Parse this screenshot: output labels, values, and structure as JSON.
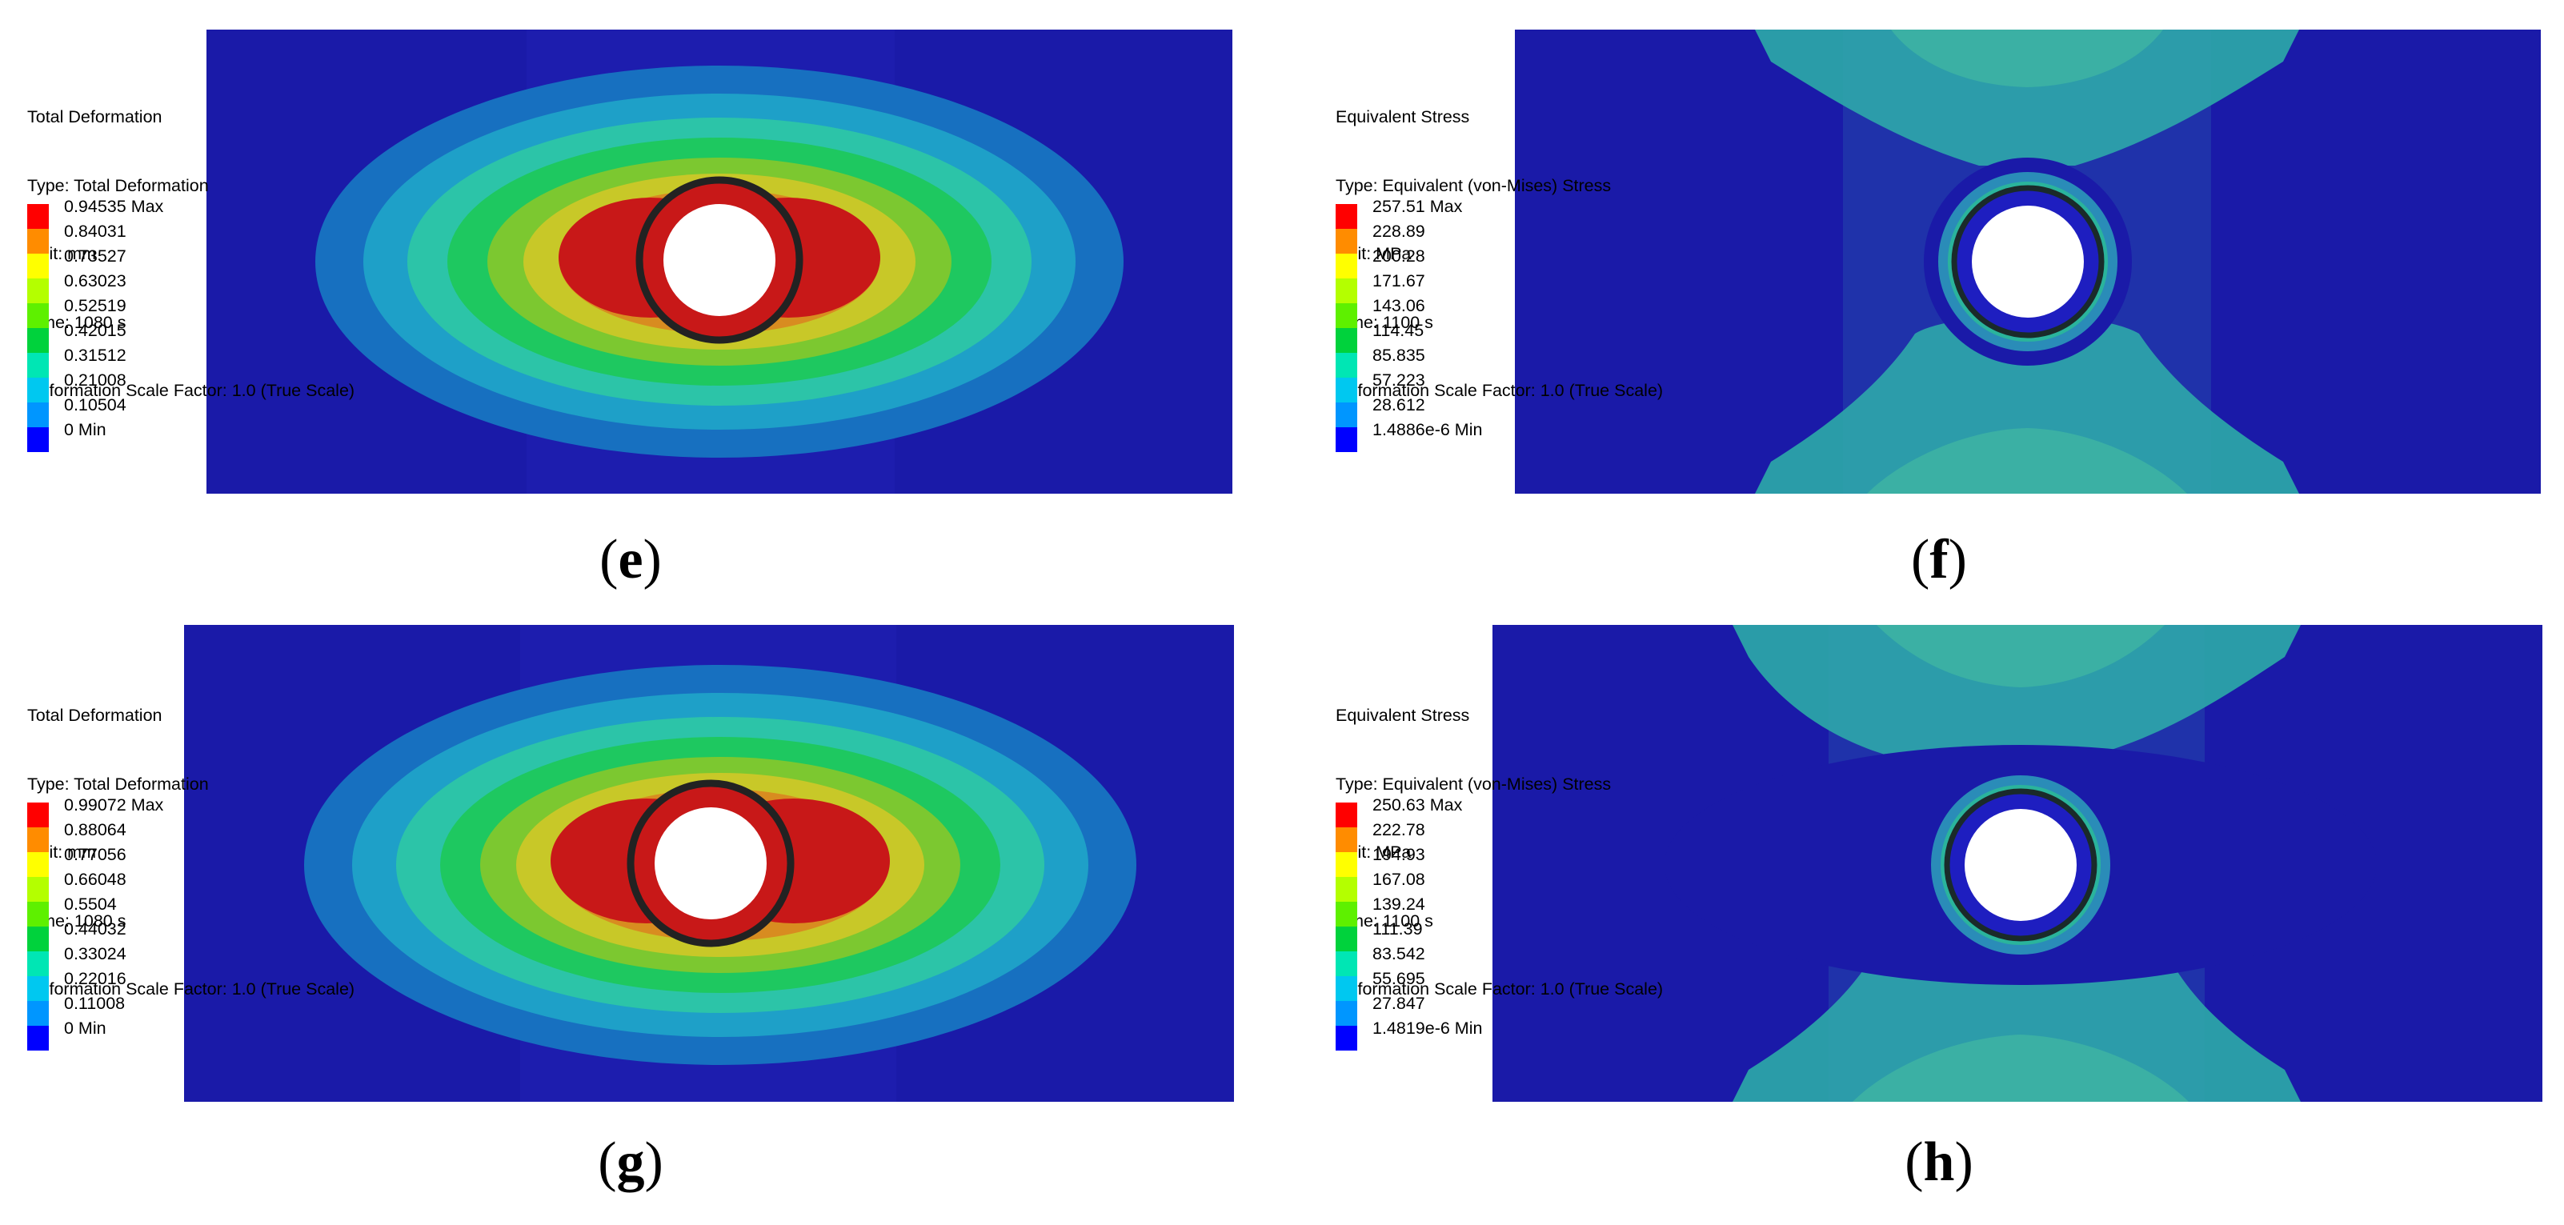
{
  "panels": [
    {
      "id": "e",
      "kind": "deformation",
      "caption_letter": "e",
      "info": [
        "Total Deformation",
        "Type: Total Deformation",
        "Unit: mm",
        "Time: 1080 s",
        "Deformation Scale Factor: 1.0 (True Scale)"
      ],
      "legend": [
        "0.94535 Max",
        "0.84031",
        "0.73527",
        "0.63023",
        "0.52519",
        "0.42015",
        "0.31512",
        "0.21008",
        "0.10504",
        "0 Min"
      ]
    },
    {
      "id": "f",
      "kind": "stress",
      "caption_letter": "f",
      "info": [
        "Equivalent Stress",
        "Type: Equivalent (von-Mises) Stress",
        "Unit: MPa",
        "Time: 1100 s",
        "Deformation Scale Factor: 1.0 (True Scale)"
      ],
      "legend": [
        "257.51 Max",
        "228.89",
        "200.28",
        "171.67",
        "143.06",
        "114.45",
        "85.835",
        "57.223",
        "28.612",
        "1.4886e-6 Min"
      ]
    },
    {
      "id": "g",
      "kind": "deformation",
      "caption_letter": "g",
      "info": [
        "Total Deformation",
        "Type: Total Deformation",
        "Unit: mm",
        "Time: 1080 s",
        "Deformation Scale Factor: 1.0 (True Scale)"
      ],
      "legend": [
        "0.99072 Max",
        "0.88064",
        "0.77056",
        "0.66048",
        "0.5504",
        "0.44032",
        "0.33024",
        "0.22016",
        "0.11008",
        "0 Min"
      ]
    },
    {
      "id": "h",
      "kind": "stress",
      "caption_letter": "h",
      "info": [
        "Equivalent Stress",
        "Type: Equivalent (von-Mises) Stress",
        "Unit: MPa",
        "Time: 1100 s",
        "Deformation Scale Factor: 1.0 (True Scale)"
      ],
      "legend": [
        "250.63 Max",
        "222.78",
        "194.93",
        "167.08",
        "139.24",
        "111.39",
        "83.542",
        "55.695",
        "27.847",
        "1.4819e-6 Min"
      ]
    }
  ],
  "colorbar": [
    "#ff0000",
    "#ff8c00",
    "#ffff00",
    "#b4ff00",
    "#5ef000",
    "#00d23c",
    "#00e6b4",
    "#00c8f0",
    "#0096ff",
    "#0000ff"
  ]
}
